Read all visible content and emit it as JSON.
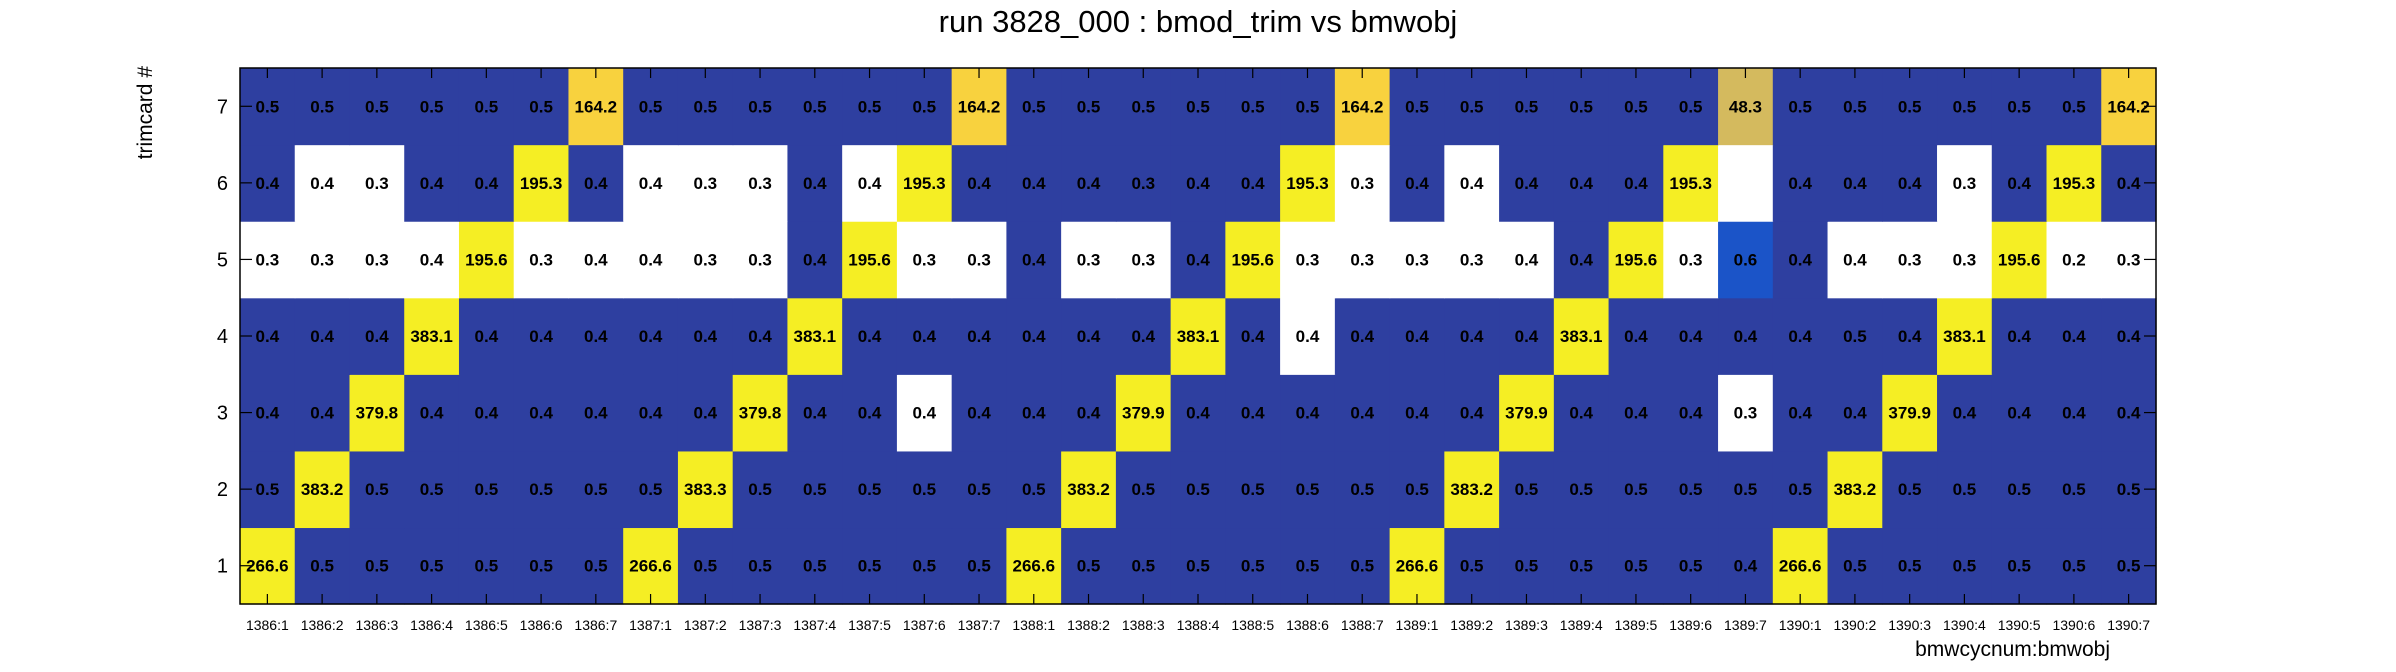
{
  "chart_data": {
    "type": "heatmap",
    "title": "run 3828_000 : bmod_trim vs bmwobj",
    "xlabel": "bmwcycnum:bmwobj",
    "ylabel": "trimcard #",
    "x_categories": [
      "1386:1",
      "1386:2",
      "1386:3",
      "1386:4",
      "1386:5",
      "1386:6",
      "1386:7",
      "1387:1",
      "1387:2",
      "1387:3",
      "1387:4",
      "1387:5",
      "1387:6",
      "1387:7",
      "1388:1",
      "1388:2",
      "1388:3",
      "1388:4",
      "1388:5",
      "1388:6",
      "1388:7",
      "1389:1",
      "1389:2",
      "1389:3",
      "1389:4",
      "1389:5",
      "1389:6",
      "1389:7",
      "1390:1",
      "1390:2",
      "1390:3",
      "1390:4",
      "1390:5",
      "1390:6",
      "1390:7"
    ],
    "y_categories": [
      "1",
      "2",
      "3",
      "4",
      "5",
      "6",
      "7"
    ],
    "rows": [
      {
        "y": "1",
        "values": [
          266.6,
          0.5,
          0.5,
          0.5,
          0.5,
          0.5,
          0.5,
          266.6,
          0.5,
          0.5,
          0.5,
          0.5,
          0.5,
          0.5,
          266.6,
          0.5,
          0.5,
          0.5,
          0.5,
          0.5,
          0.5,
          266.6,
          0.5,
          0.5,
          0.5,
          0.5,
          0.5,
          0.4,
          266.6,
          0.5,
          0.5,
          0.5,
          0.5,
          0.5,
          0.5
        ]
      },
      {
        "y": "2",
        "values": [
          0.5,
          383.2,
          0.5,
          0.5,
          0.5,
          0.5,
          0.5,
          0.5,
          383.3,
          0.5,
          0.5,
          0.5,
          0.5,
          0.5,
          0.5,
          383.2,
          0.5,
          0.5,
          0.5,
          0.5,
          0.5,
          0.5,
          383.2,
          0.5,
          0.5,
          0.5,
          0.5,
          0.5,
          0.5,
          383.2,
          0.5,
          0.5,
          0.5,
          0.5,
          0.5
        ]
      },
      {
        "y": "3",
        "values": [
          0.4,
          0.4,
          379.8,
          0.4,
          0.4,
          0.4,
          0.4,
          0.4,
          0.4,
          379.8,
          0.4,
          0.4,
          0.4,
          0.4,
          0.4,
          0.4,
          379.9,
          0.4,
          0.4,
          0.4,
          0.4,
          0.4,
          0.4,
          379.9,
          0.4,
          0.4,
          0.4,
          0.3,
          0.4,
          0.4,
          379.9,
          0.4,
          0.4,
          0.4,
          0.4
        ]
      },
      {
        "y": "4",
        "values": [
          0.4,
          0.4,
          0.4,
          383.1,
          0.4,
          0.4,
          0.4,
          0.4,
          0.4,
          0.4,
          383.1,
          0.4,
          0.4,
          0.4,
          0.4,
          0.4,
          0.4,
          383.1,
          0.4,
          0.4,
          0.4,
          0.4,
          0.4,
          0.4,
          383.1,
          0.4,
          0.4,
          0.4,
          0.4,
          0.5,
          0.4,
          383.1,
          0.4,
          0.4,
          0.4
        ]
      },
      {
        "y": "5",
        "values": [
          0.3,
          0.3,
          0.3,
          0.4,
          195.6,
          0.3,
          0.4,
          0.4,
          0.3,
          0.3,
          0.4,
          195.6,
          0.3,
          0.3,
          0.4,
          0.3,
          0.3,
          0.4,
          195.6,
          0.3,
          0.3,
          0.3,
          0.3,
          0.4,
          0.4,
          195.6,
          0.3,
          0.6,
          0.4,
          0.4,
          0.3,
          0.3,
          195.6,
          0.2,
          0.3
        ]
      },
      {
        "y": "6",
        "values": [
          0.4,
          0.4,
          0.3,
          0.4,
          0.4,
          195.3,
          0.4,
          0.4,
          0.3,
          0.3,
          0.4,
          0.4,
          195.3,
          0.4,
          0.4,
          0.4,
          0.3,
          0.4,
          0.4,
          195.3,
          0.3,
          0.4,
          0.4,
          0.4,
          0.4,
          0.4,
          195.3,
          null,
          0.4,
          0.4,
          0.4,
          0.3,
          0.4,
          195.3,
          0.4
        ]
      },
      {
        "y": "7",
        "values": [
          0.5,
          0.5,
          0.5,
          0.5,
          0.5,
          0.5,
          164.2,
          0.5,
          0.5,
          0.5,
          0.5,
          0.5,
          0.5,
          164.2,
          0.5,
          0.5,
          0.5,
          0.5,
          0.5,
          0.5,
          164.2,
          0.5,
          0.5,
          0.5,
          0.5,
          0.5,
          0.5,
          48.3,
          0.5,
          0.5,
          0.5,
          0.5,
          0.5,
          0.5,
          164.2
        ]
      }
    ],
    "cell_colors": {
      "white": [
        [
          "6",
          1
        ],
        [
          "6",
          2
        ],
        [
          "6",
          7
        ],
        [
          "6",
          8
        ],
        [
          "6",
          9
        ],
        [
          "6",
          11
        ],
        [
          "6",
          20
        ],
        [
          "6",
          22
        ],
        [
          "6",
          27
        ],
        [
          "6",
          31
        ],
        [
          "5",
          0
        ],
        [
          "5",
          1
        ],
        [
          "5",
          2
        ],
        [
          "5",
          3
        ],
        [
          "5",
          5
        ],
        [
          "5",
          6
        ],
        [
          "5",
          7
        ],
        [
          "5",
          8
        ],
        [
          "5",
          9
        ],
        [
          "5",
          12
        ],
        [
          "5",
          13
        ],
        [
          "5",
          15
        ],
        [
          "5",
          16
        ],
        [
          "5",
          19
        ],
        [
          "5",
          20
        ],
        [
          "5",
          21
        ],
        [
          "5",
          22
        ],
        [
          "5",
          23
        ],
        [
          "5",
          26
        ],
        [
          "5",
          29
        ],
        [
          "5",
          30
        ],
        [
          "5",
          31
        ],
        [
          "5",
          33
        ],
        [
          "5",
          34
        ],
        [
          "4",
          19
        ],
        [
          "3",
          12
        ],
        [
          "3",
          27
        ]
      ],
      "yellow": "#f5ee24",
      "gold": "#f8d23e",
      "olive": "#d4ba5e",
      "blue_bg": "#2e3fa0",
      "mid_blue": "#1b54c8",
      "white_cell": "#ffffff"
    },
    "grid": false,
    "legend": "none"
  }
}
